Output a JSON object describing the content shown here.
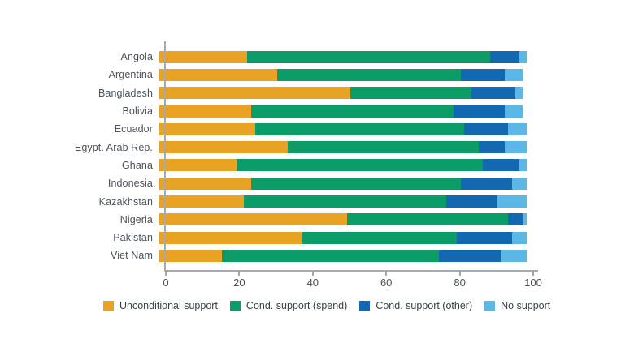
{
  "chart_data": {
    "type": "bar",
    "orientation": "horizontal",
    "stacked": true,
    "title": "",
    "xlabel": "",
    "ylabel": "",
    "xlim": [
      0,
      100
    ],
    "x_ticks": [
      0,
      20,
      40,
      60,
      80,
      100
    ],
    "grid": false,
    "legend_position": "bottom",
    "categories": [
      "Angola",
      "Argentina",
      "Bangladesh",
      "Bolivia",
      "Ecuador",
      "Egypt. Arab Rep.",
      "Ghana",
      "Indonesia",
      "Kazakhstan",
      "Nigeria",
      "Pakistan",
      "Viet Nam"
    ],
    "series": [
      {
        "name": "Unconditional support",
        "color": "#E8A224",
        "values": [
          24,
          32,
          52,
          25,
          26,
          35,
          21,
          25,
          23,
          51,
          39,
          17
        ]
      },
      {
        "name": "Cond. support (spend)",
        "color": "#0B9C68",
        "values": [
          66,
          50,
          33,
          55,
          57,
          52,
          67,
          57,
          55,
          44,
          42,
          59
        ]
      },
      {
        "name": "Cond. support (other)",
        "color": "#1268B1",
        "values": [
          8,
          12,
          12,
          14,
          12,
          7,
          10,
          14,
          14,
          4,
          15,
          17
        ]
      },
      {
        "name": "No support",
        "color": "#5BB7E5",
        "values": [
          2,
          5,
          2,
          5,
          5,
          6,
          2,
          4,
          8,
          1,
          4,
          7
        ]
      }
    ]
  },
  "colors": {
    "axis_line": "#A7A9AC",
    "category_text": "#4A525A",
    "tick_text": "#4A525A",
    "legend_text": "#39424A",
    "background": "#FFFFFF"
  }
}
